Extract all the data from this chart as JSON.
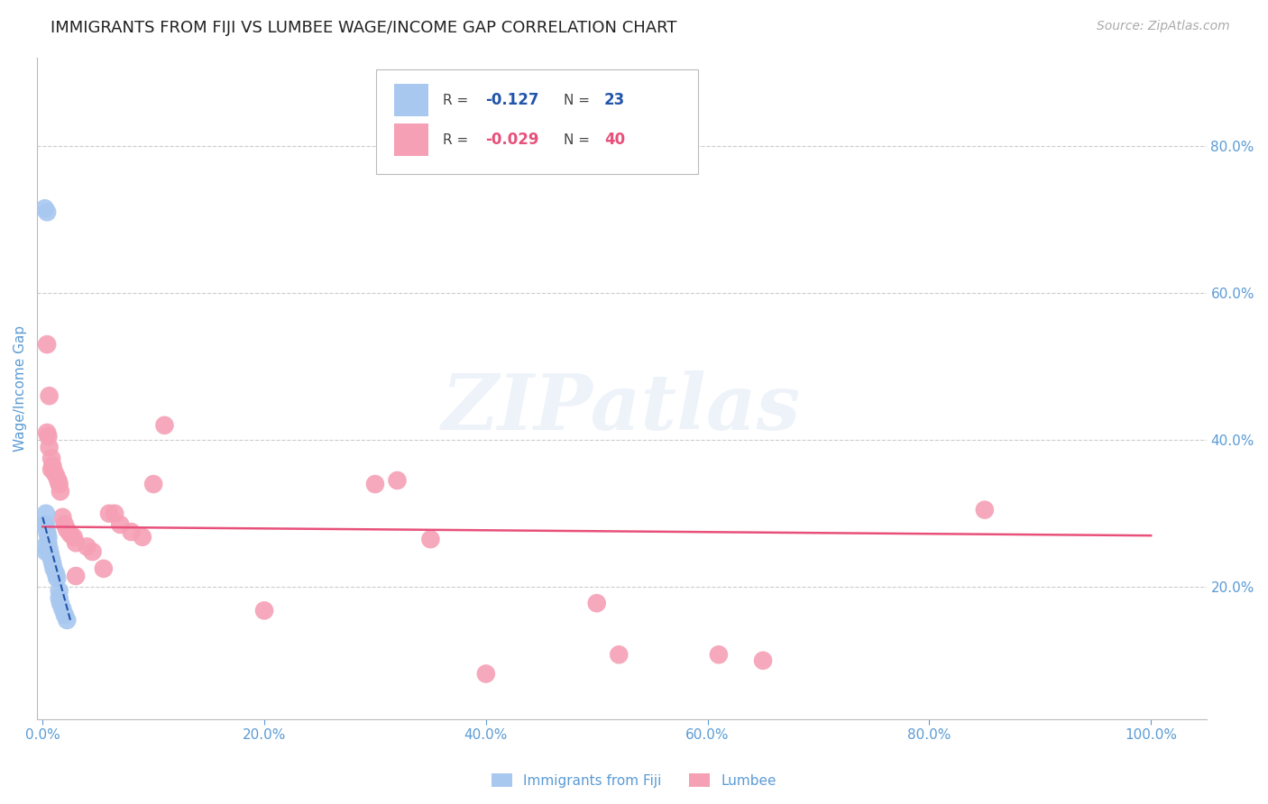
{
  "title": "IMMIGRANTS FROM FIJI VS LUMBEE WAGE/INCOME GAP CORRELATION CHART",
  "source": "Source: ZipAtlas.com",
  "ylabel": "Wage/Income Gap",
  "right_ytick_labels": [
    "20.0%",
    "40.0%",
    "60.0%",
    "80.0%"
  ],
  "right_ytick_values": [
    0.2,
    0.4,
    0.6,
    0.8
  ],
  "xtick_labels": [
    "0.0%",
    "20.0%",
    "40.0%",
    "60.0%",
    "80.0%",
    "100.0%"
  ],
  "xtick_values": [
    0.0,
    0.2,
    0.4,
    0.6,
    0.8,
    1.0
  ],
  "xlim": [
    -0.005,
    1.05
  ],
  "ylim": [
    0.02,
    0.92
  ],
  "fiji_color": "#a8c8f0",
  "lumbee_color": "#f5a0b5",
  "fiji_trend_color": "#2255aa",
  "lumbee_trend_color": "#e8507a",
  "R_fiji": -0.127,
  "N_fiji": 23,
  "R_lumbee": -0.029,
  "N_lumbee": 40,
  "legend_label_fiji": "Immigrants from Fiji",
  "legend_label_lumbee": "Lumbee",
  "background_color": "#ffffff",
  "grid_color": "#cccccc",
  "fiji_x": [
    0.002,
    0.004,
    0.002,
    0.003,
    0.003,
    0.004,
    0.005,
    0.005,
    0.006,
    0.007,
    0.008,
    0.009,
    0.01,
    0.012,
    0.013,
    0.015,
    0.015,
    0.016,
    0.018,
    0.02,
    0.022,
    0.002,
    0.003
  ],
  "fiji_y": [
    0.715,
    0.71,
    0.285,
    0.3,
    0.285,
    0.275,
    0.268,
    0.26,
    0.252,
    0.245,
    0.238,
    0.232,
    0.225,
    0.218,
    0.212,
    0.195,
    0.185,
    0.178,
    0.17,
    0.162,
    0.155,
    0.255,
    0.248
  ],
  "lumbee_x": [
    0.004,
    0.005,
    0.006,
    0.008,
    0.009,
    0.01,
    0.012,
    0.014,
    0.015,
    0.016,
    0.018,
    0.02,
    0.022,
    0.025,
    0.028,
    0.03,
    0.04,
    0.045,
    0.055,
    0.06,
    0.065,
    0.07,
    0.08,
    0.09,
    0.1,
    0.11,
    0.3,
    0.32,
    0.35,
    0.5,
    0.52,
    0.61,
    0.65,
    0.85,
    0.004,
    0.006,
    0.008,
    0.03,
    0.2,
    0.4
  ],
  "lumbee_y": [
    0.41,
    0.405,
    0.39,
    0.375,
    0.365,
    0.358,
    0.352,
    0.345,
    0.34,
    0.33,
    0.295,
    0.285,
    0.278,
    0.272,
    0.268,
    0.26,
    0.255,
    0.248,
    0.225,
    0.3,
    0.3,
    0.285,
    0.275,
    0.268,
    0.34,
    0.42,
    0.34,
    0.345,
    0.265,
    0.178,
    0.108,
    0.108,
    0.1,
    0.305,
    0.53,
    0.46,
    0.36,
    0.215,
    0.168,
    0.082
  ],
  "title_color": "#222222",
  "axis_label_color": "#5b9bd5",
  "tick_color": "#5b9bd5",
  "title_fontsize": 13,
  "axis_fontsize": 11,
  "tick_fontsize": 11,
  "source_fontsize": 10,
  "lumbee_trend_start_x": 0.0,
  "lumbee_trend_start_y": 0.282,
  "lumbee_trend_end_x": 1.0,
  "lumbee_trend_end_y": 0.27,
  "fiji_trend_start_x": 0.0,
  "fiji_trend_start_y": 0.295,
  "fiji_trend_end_x": 0.025,
  "fiji_trend_end_y": 0.155
}
